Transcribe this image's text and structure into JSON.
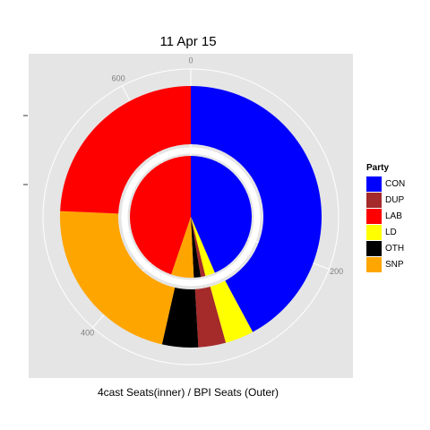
{
  "chart_data": {
    "type": "pie",
    "title": "11 Apr 15",
    "xlabel": "4cast Seats(inner) / BPI Seats (Outer)",
    "legend_position": "right",
    "legend_title": "Party",
    "total_seats": 650,
    "angle_ticks": [
      0,
      200,
      400,
      600
    ],
    "parties": [
      {
        "name": "CON",
        "color": "#0000ff"
      },
      {
        "name": "DUP",
        "color": "#a52a2a"
      },
      {
        "name": "LAB",
        "color": "#ff0000"
      },
      {
        "name": "LD",
        "color": "#ffff00"
      },
      {
        "name": "OTH",
        "color": "#000000"
      },
      {
        "name": "SNP",
        "color": "#ffa500"
      }
    ],
    "series": [
      {
        "name": "4cast Seats",
        "ring": "inner",
        "values": {
          "CON": 283,
          "LD": 17,
          "DUP": 8,
          "OTH": 12,
          "SNP": 39,
          "LAB": 291
        }
      },
      {
        "name": "BPI Seats",
        "ring": "outer",
        "values": {
          "CON": 274,
          "LD": 23,
          "DUP": 22,
          "OTH": 29,
          "SNP": 144,
          "LAB": 158
        }
      }
    ]
  }
}
